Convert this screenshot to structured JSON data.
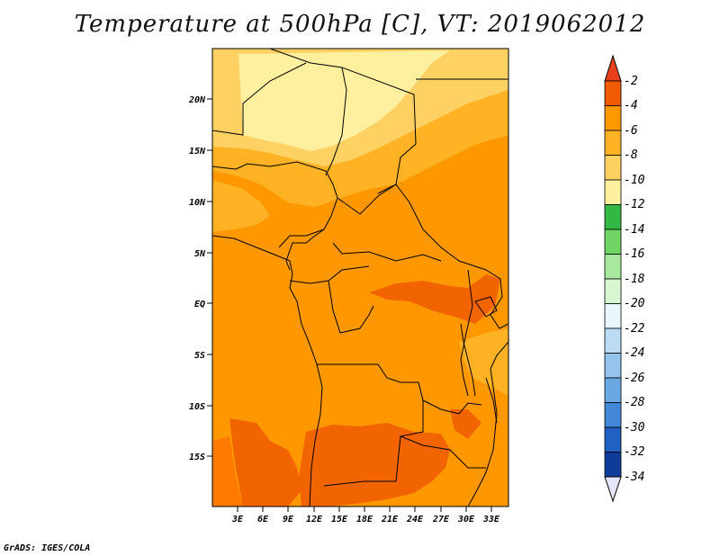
{
  "title": "Temperature at 500hPa [C], VT: 2019062012",
  "credit": "GrADS: IGES/COLA",
  "map": {
    "lat_labels": [
      "20N",
      "15N",
      "10N",
      "5N",
      "EQ",
      "5S",
      "10S",
      "15S"
    ],
    "lon_labels": [
      "3E",
      "6E",
      "9E",
      "12E",
      "15E",
      "18E",
      "21E",
      "24E",
      "27E",
      "30E",
      "33E"
    ]
  },
  "colorbar": {
    "labels": [
      "-2",
      "-4",
      "-6",
      "-8",
      "-10",
      "-12",
      "-14",
      "-16",
      "-18",
      "-20",
      "-22",
      "-24",
      "-26",
      "-28",
      "-30",
      "-32",
      "-34"
    ],
    "colors": [
      "#f05a00",
      "#ff9800",
      "#ffb224",
      "#ffd062",
      "#fff0a0",
      "#33b845",
      "#6fd464",
      "#a6e99c",
      "#d8f6d0",
      "#e9f6fc",
      "#bcdcf6",
      "#94c4ee",
      "#6aa8e4",
      "#4287d8",
      "#2062c4",
      "#0e3c98"
    ],
    "top_color": "#e8401a",
    "bottom_color": "#e6e6fa"
  },
  "fill_colors": {
    "ocean": "#ff9800",
    "land": "#ffa01e",
    "warm": "#f26400",
    "mid": "#ffb224",
    "cool": "#ffd062",
    "cold": "#fff0a0"
  }
}
